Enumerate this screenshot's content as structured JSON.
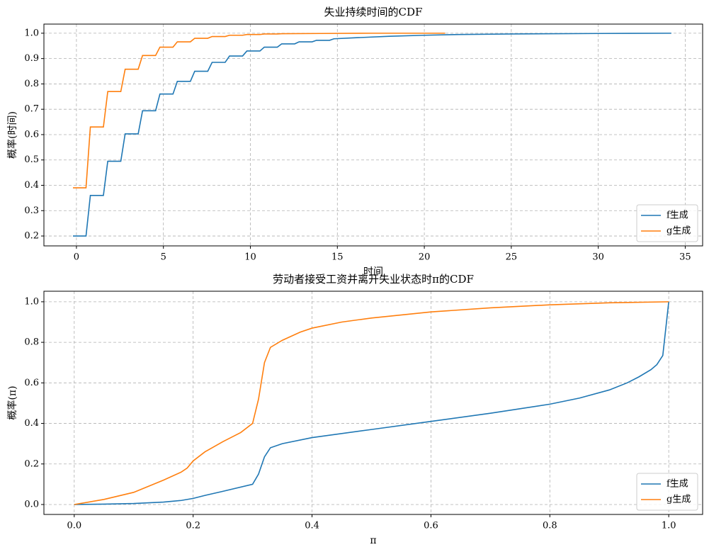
{
  "chart_data": [
    {
      "type": "line",
      "title": "失业持续时间的CDF",
      "xlabel": "时间",
      "ylabel": "概率(时间)",
      "xlim": [
        -1.87,
        36.0
      ],
      "ylim": [
        0.161,
        1.036
      ],
      "xticks": [
        0,
        5,
        10,
        15,
        20,
        25,
        30,
        35
      ],
      "yticks": [
        0.2,
        0.3,
        0.4,
        0.5,
        0.6,
        0.7,
        0.8,
        0.9,
        {
          "value": 1,
          "label": "1.0"
        }
      ],
      "grid": true,
      "legend": "lower right",
      "series": [
        {
          "name": "f生成",
          "color": "#1f77b4",
          "x": [
            -0.2,
            0.55,
            0.8,
            1.55,
            1.8,
            2.55,
            2.8,
            3.55,
            3.8,
            4.55,
            4.8,
            5.55,
            5.8,
            6.55,
            6.8,
            7.55,
            7.8,
            8.55,
            8.8,
            9.55,
            9.8,
            10.55,
            10.8,
            11.55,
            11.8,
            12.55,
            12.8,
            13.55,
            13.8,
            14.55,
            14.8,
            16,
            18,
            20,
            22,
            25,
            30,
            34.2
          ],
          "values": [
            0.2,
            0.2,
            0.36,
            0.36,
            0.495,
            0.495,
            0.603,
            0.603,
            0.694,
            0.694,
            0.76,
            0.76,
            0.81,
            0.81,
            0.85,
            0.85,
            0.885,
            0.885,
            0.91,
            0.91,
            0.93,
            0.93,
            0.945,
            0.945,
            0.958,
            0.958,
            0.966,
            0.966,
            0.972,
            0.972,
            0.978,
            0.982,
            0.988,
            0.992,
            0.995,
            0.997,
            0.999,
            1.0
          ]
        },
        {
          "name": "g生成",
          "color": "#ff7f0e",
          "x": [
            -0.2,
            0.55,
            0.8,
            1.55,
            1.8,
            2.55,
            2.8,
            3.55,
            3.8,
            4.55,
            4.8,
            5.55,
            5.8,
            6.55,
            6.8,
            7.55,
            7.8,
            8.55,
            8.8,
            9.55,
            9.8,
            10.55,
            10.8,
            11.55,
            11.8,
            14,
            17,
            21.2
          ],
          "values": [
            0.39,
            0.39,
            0.63,
            0.63,
            0.77,
            0.77,
            0.858,
            0.858,
            0.912,
            0.912,
            0.945,
            0.945,
            0.966,
            0.966,
            0.98,
            0.98,
            0.987,
            0.987,
            0.992,
            0.992,
            0.995,
            0.995,
            0.997,
            0.997,
            0.998,
            0.999,
            1.0,
            1.0
          ]
        }
      ]
    },
    {
      "type": "line",
      "title": "劳动者接受工资并离开失业状态时π的CDF",
      "xlabel": "π",
      "ylabel": "概率(π)",
      "xlim": [
        -0.051,
        1.057
      ],
      "ylim": [
        -0.049,
        1.052
      ],
      "xticks": [
        {
          "value": 0,
          "label": "0.0"
        },
        0.2,
        0.4,
        0.6,
        0.8,
        {
          "value": 1,
          "label": "1.0"
        }
      ],
      "yticks": [
        {
          "value": 0,
          "label": "0.0"
        },
        0.2,
        0.4,
        0.6,
        0.8,
        {
          "value": 1,
          "label": "1.0"
        }
      ],
      "grid": true,
      "legend": "lower right",
      "series": [
        {
          "name": "f生成",
          "color": "#1f77b4",
          "x": [
            0,
            0.05,
            0.1,
            0.15,
            0.18,
            0.2,
            0.22,
            0.25,
            0.3,
            0.31,
            0.32,
            0.33,
            0.35,
            0.4,
            0.5,
            0.6,
            0.7,
            0.8,
            0.85,
            0.9,
            0.93,
            0.95,
            0.97,
            0.98,
            0.99,
            1.0
          ],
          "values": [
            0,
            0.002,
            0.005,
            0.012,
            0.02,
            0.03,
            0.045,
            0.065,
            0.1,
            0.15,
            0.235,
            0.28,
            0.3,
            0.33,
            0.37,
            0.41,
            0.45,
            0.495,
            0.525,
            0.565,
            0.6,
            0.63,
            0.665,
            0.69,
            0.735,
            1.0
          ]
        },
        {
          "name": "g生成",
          "color": "#ff7f0e",
          "x": [
            0,
            0.05,
            0.1,
            0.15,
            0.18,
            0.19,
            0.2,
            0.22,
            0.25,
            0.28,
            0.3,
            0.31,
            0.32,
            0.33,
            0.35,
            0.38,
            0.4,
            0.45,
            0.5,
            0.6,
            0.7,
            0.8,
            0.9,
            1.0
          ],
          "values": [
            0,
            0.025,
            0.06,
            0.12,
            0.16,
            0.18,
            0.215,
            0.26,
            0.31,
            0.355,
            0.4,
            0.52,
            0.7,
            0.775,
            0.81,
            0.85,
            0.87,
            0.9,
            0.92,
            0.95,
            0.97,
            0.985,
            0.995,
            1.0
          ]
        }
      ]
    }
  ]
}
